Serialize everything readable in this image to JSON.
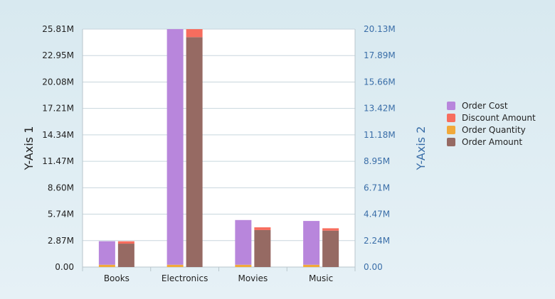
{
  "colors": {
    "order_cost": "#b886dc",
    "discount_amount": "#f76d5e",
    "order_quantity": "#f1a93a",
    "order_amount": "#966a63",
    "axis2_text": "#3a6ea8",
    "gridline": "#c8d6dd",
    "plot_bg": "#ffffff"
  },
  "chart_data": {
    "type": "bar",
    "stacked": true,
    "categories": [
      "Books",
      "Electronics",
      "Movies",
      "Music"
    ],
    "y_axis_1": {
      "label": "Y-Axis 1",
      "ticks": [
        "0.00",
        "2.87M",
        "5.74M",
        "8.60M",
        "11.47M",
        "14.34M",
        "17.21M",
        "20.08M",
        "22.95M",
        "25.81M"
      ],
      "range": [
        0,
        25810000
      ]
    },
    "y_axis_2": {
      "label": "Y-Axis 2",
      "ticks": [
        "0.00",
        "2.24M",
        "4.47M",
        "6.71M",
        "8.95M",
        "11.18M",
        "13.42M",
        "15.66M",
        "17.89M",
        "20.13M"
      ],
      "range": [
        0,
        20130000
      ]
    },
    "stacks": [
      {
        "axis": "y_axis_1",
        "series": [
          {
            "name": "Order Quantity",
            "color_key": "order_quantity",
            "values": [
              250000,
              250000,
              250000,
              250000
            ]
          },
          {
            "name": "Order Cost",
            "color_key": "order_cost",
            "values": [
              2550000,
              25560000,
              4850000,
              4750000
            ]
          }
        ]
      },
      {
        "axis": "y_axis_2",
        "series": [
          {
            "name": "Order Amount",
            "color_key": "order_amount",
            "values": [
              1980000,
              19450000,
              3130000,
              3080000
            ]
          },
          {
            "name": "Discount Amount",
            "color_key": "discount_amount",
            "values": [
              200000,
              680000,
              230000,
              200000
            ]
          }
        ]
      }
    ],
    "legend": {
      "position": "right",
      "items": [
        {
          "name": "Order Cost",
          "color_key": "order_cost"
        },
        {
          "name": "Discount Amount",
          "color_key": "discount_amount"
        },
        {
          "name": "Order Quantity",
          "color_key": "order_quantity"
        },
        {
          "name": "Order Amount",
          "color_key": "order_amount"
        }
      ]
    },
    "grid": true
  }
}
